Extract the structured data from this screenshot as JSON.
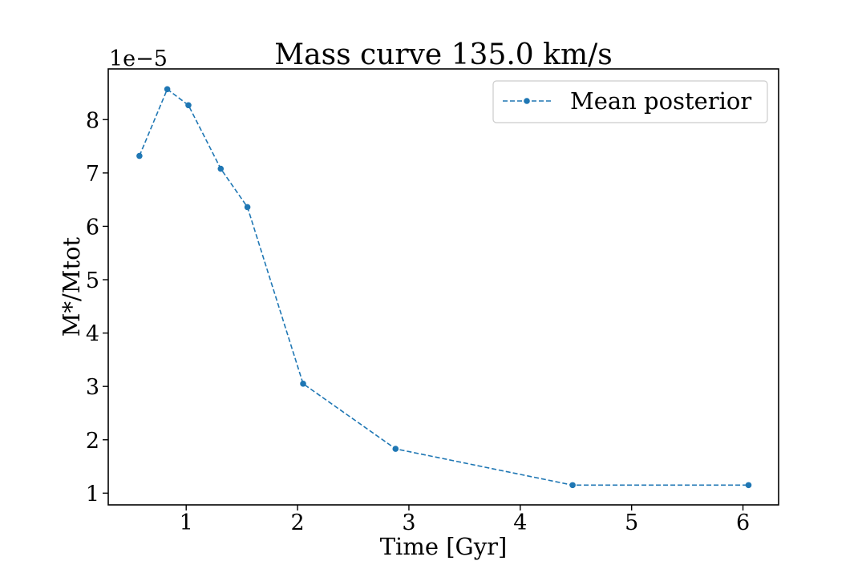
{
  "chart_data": {
    "type": "line",
    "title": "Mass curve 135.0 km/s",
    "xlabel": "Time [Gyr]",
    "ylabel": "M*/Mtot",
    "y_offset_text": "1e−5",
    "xlim": [
      0.3,
      6.32
    ],
    "ylim": [
      0.78,
      8.95
    ],
    "xticks": [
      1,
      2,
      3,
      4,
      5,
      6
    ],
    "yticks": [
      1,
      2,
      3,
      4,
      5,
      6,
      7,
      8
    ],
    "grid": false,
    "legend_position": "top-right",
    "series": [
      {
        "name": "Mean posterior",
        "color": "#1f77b4",
        "linestyle": "dashed",
        "marker": "circle",
        "x": [
          0.58,
          0.83,
          1.02,
          1.31,
          1.55,
          2.05,
          2.88,
          4.47,
          6.05
        ],
        "y": [
          7.32,
          8.57,
          8.27,
          7.08,
          6.36,
          3.05,
          1.83,
          1.15,
          1.15
        ]
      }
    ]
  }
}
